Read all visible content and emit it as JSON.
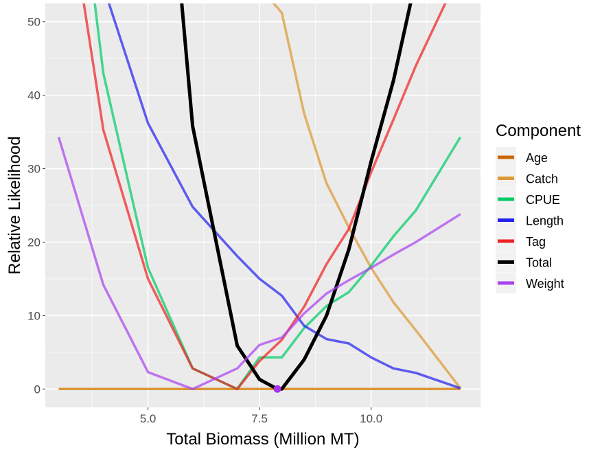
{
  "chart_data": {
    "type": "line",
    "xlabel": "Total Biomass (Million MT)",
    "ylabel": "Relative Likelihood",
    "xlim": [
      2.7,
      12.45
    ],
    "ylim": [
      -2.5,
      52.5
    ],
    "x_ticks": [
      5.0,
      7.5,
      10.0
    ],
    "x_tick_labels": [
      "5.0",
      "7.5",
      "10.0"
    ],
    "y_ticks": [
      0,
      10,
      20,
      30,
      40,
      50
    ],
    "y_tick_labels": [
      "0",
      "10",
      "20",
      "30",
      "40",
      "50"
    ],
    "grid": true,
    "legend_title": "Component",
    "legend_position": "right",
    "series": [
      {
        "name": "Age",
        "color": "#cc6600",
        "x": [
          3,
          4,
          5,
          6,
          7,
          7.9,
          8,
          8.5,
          9,
          9.5,
          10,
          10.5,
          11,
          12
        ],
        "y": [
          0,
          0,
          0,
          0,
          0,
          0,
          0,
          0,
          0,
          0,
          0,
          0,
          0,
          0
        ]
      },
      {
        "name": "Catch",
        "color": "#dd9933",
        "x": [
          3,
          4,
          5,
          6,
          7,
          7.5,
          7.9,
          8,
          8.5,
          9,
          9.5,
          10,
          10.5,
          11,
          12
        ],
        "y": [
          0,
          0,
          0,
          0,
          0,
          0,
          0,
          0,
          0,
          0,
          0,
          0,
          0,
          0,
          0
        ],
        "upper_x": [
          7.75,
          8,
          8.5,
          9,
          9.5,
          10,
          10.5,
          11,
          12
        ],
        "upper_y": [
          53,
          51.2,
          37.5,
          28,
          22,
          16.5,
          11.8,
          8,
          0.1
        ]
      },
      {
        "name": "CPUE",
        "color": "#00cc66",
        "x": [
          3.8,
          4,
          5,
          6,
          7,
          7.5,
          8,
          8.5,
          9,
          9.5,
          10,
          10.5,
          11,
          12
        ],
        "y": [
          53,
          43,
          16.5,
          2.8,
          0,
          4.3,
          4.3,
          8.3,
          11.3,
          13.2,
          16.8,
          20.8,
          24.3,
          34.3
        ]
      },
      {
        "name": "Length",
        "color": "#2222ee",
        "x": [
          4.1,
          5,
          6,
          7,
          7.5,
          8,
          8.5,
          9,
          9.5,
          10,
          10.5,
          11,
          12
        ],
        "y": [
          53,
          36.2,
          24.8,
          18.1,
          15,
          12.7,
          8.6,
          6.8,
          6.2,
          4.3,
          2.8,
          2.2,
          0.1
        ]
      },
      {
        "name": "Tag",
        "color": "#ee2222",
        "x": [
          3.55,
          4,
          5,
          6,
          7,
          7.5,
          8,
          8.5,
          9,
          9.5,
          10,
          10.5,
          11,
          11.7
        ],
        "y": [
          53,
          35.3,
          15,
          2.8,
          0,
          3.8,
          6.7,
          11.2,
          17,
          21.8,
          29.5,
          36.7,
          44,
          53
        ]
      },
      {
        "name": "Total",
        "color": "#000000",
        "x": [
          5.75,
          6,
          7,
          7.5,
          7.9,
          8,
          8.5,
          9,
          9.5,
          10,
          10.5,
          10.9
        ],
        "y": [
          53,
          35.8,
          5.9,
          1.3,
          0,
          0,
          4,
          10,
          19,
          31,
          42,
          53
        ]
      },
      {
        "name": "Weight",
        "color": "#aa44ee",
        "x": [
          3,
          4,
          5,
          6,
          7,
          7.5,
          8,
          8.5,
          9,
          9.5,
          10,
          10.5,
          11,
          12
        ],
        "y": [
          34.3,
          14.2,
          2.3,
          0,
          2.8,
          6,
          7,
          10.3,
          13,
          14.8,
          16.5,
          18.3,
          20,
          23.8
        ]
      }
    ],
    "points": [
      {
        "x": 7.9,
        "y": 0,
        "color": "#aa33ee"
      }
    ]
  }
}
